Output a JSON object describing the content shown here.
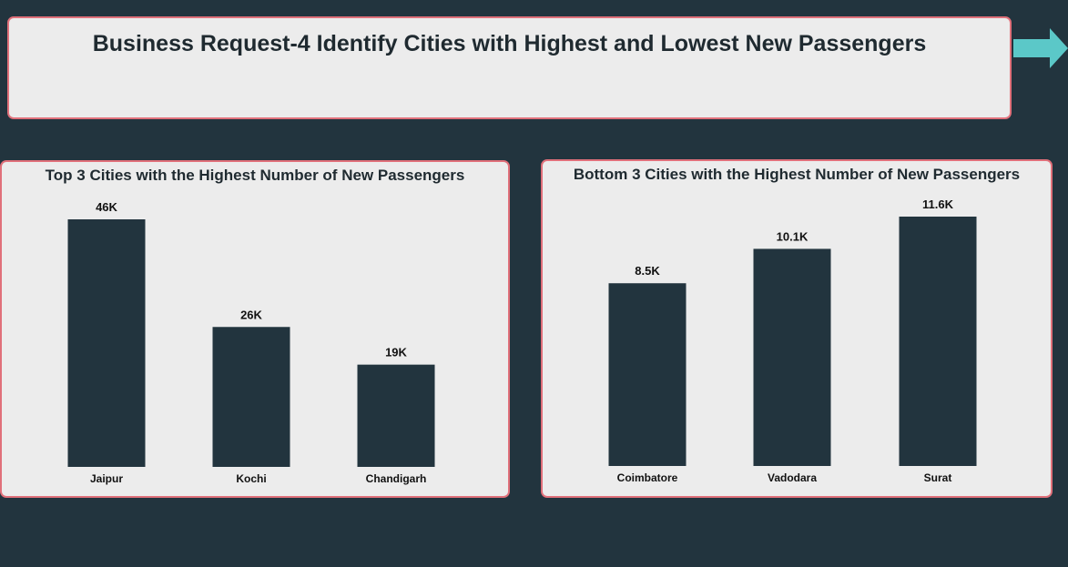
{
  "header": {
    "title": "Business Request-4 Identify Cities with Highest and Lowest New Passengers"
  },
  "colors": {
    "bar": "#22343e",
    "panel": "#ececec",
    "border": "#e0707a",
    "arrow": "#5bc8c8",
    "background": "#22343e"
  },
  "icons": {
    "next": "arrow-right-icon"
  },
  "chart_data": [
    {
      "type": "bar",
      "title": "Top 3 Cities with the Highest Number of New Passengers",
      "categories": [
        "Jaipur",
        "Kochi",
        "Chandigarh"
      ],
      "values": [
        46000,
        26000,
        19000
      ],
      "labels": [
        "46K",
        "26K",
        "19K"
      ],
      "ylim": [
        0,
        46000
      ],
      "grid": false
    },
    {
      "type": "bar",
      "title": "Bottom 3 Cities with the Highest Number of New Passengers",
      "categories": [
        "Coimbatore",
        "Vadodara",
        "Surat"
      ],
      "values": [
        8500,
        10100,
        11600
      ],
      "labels": [
        "8.5K",
        "10.1K",
        "11.6K"
      ],
      "ylim": [
        0,
        11600
      ],
      "grid": false
    }
  ]
}
